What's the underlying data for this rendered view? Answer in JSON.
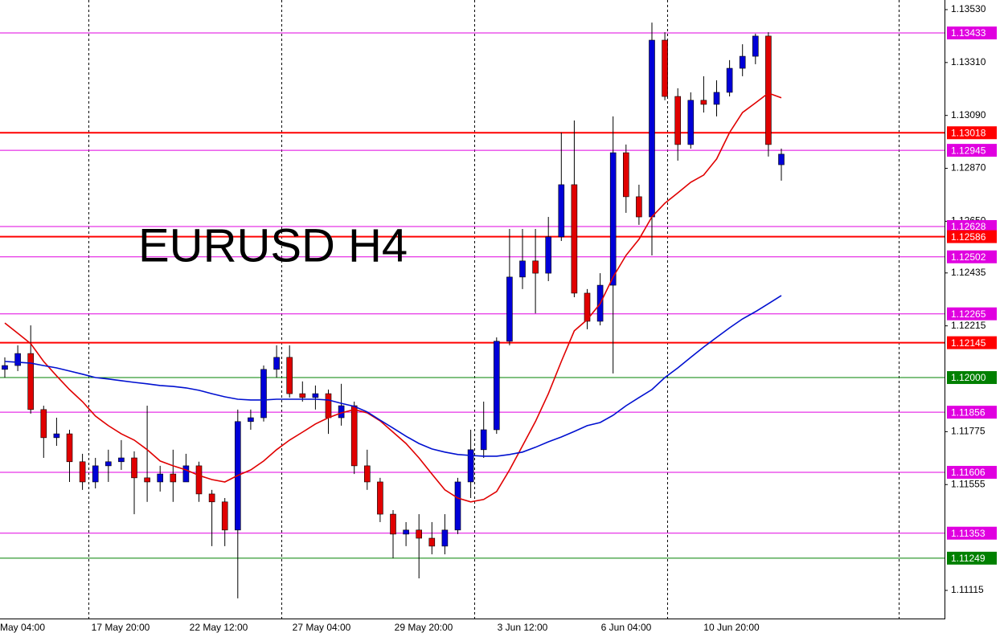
{
  "chart_data": {
    "type": "candlestick",
    "annotation": "EURUSD H4",
    "ylim": [
      1.10998,
      1.1357
    ],
    "yticks": [
      {
        "value": 1.1353,
        "label": "1.13530"
      },
      {
        "value": 1.1331,
        "label": "1.13310"
      },
      {
        "value": 1.1309,
        "label": "1.13090"
      },
      {
        "value": 1.1287,
        "label": "1.12870"
      },
      {
        "value": 1.1265,
        "label": "1.12650"
      },
      {
        "value": 1.12435,
        "label": "1.12435"
      },
      {
        "value": 1.12215,
        "label": "1.12215"
      },
      {
        "value": 1.11775,
        "label": "1.11775"
      },
      {
        "value": 1.11555,
        "label": "1.11555"
      },
      {
        "value": 1.11115,
        "label": "1.11115"
      }
    ],
    "x_labels": [
      "May 04:00",
      "17 May 20:00",
      "22 May 12:00",
      "27 May 04:00",
      "29 May 20:00",
      "3 Jun 12:00",
      "6 Jun 04:00",
      "10 Jun 20:00"
    ],
    "up_color": "#0000d8",
    "down_color": "#e00000",
    "candles": {
      "open": [
        1.12034,
        1.1205,
        1.121,
        1.11867,
        1.1175,
        1.11766,
        1.1165,
        1.11566,
        1.11633,
        1.1165,
        1.11666,
        1.11583,
        1.11566,
        1.11599,
        1.11566,
        1.11633,
        1.11516,
        1.11483,
        1.11366,
        1.11817,
        1.11833,
        1.12034,
        1.12084,
        1.11933,
        1.11917,
        1.11933,
        1.11833,
        1.11883,
        1.11633,
        1.11566,
        1.11432,
        1.11349,
        1.11366,
        1.11332,
        1.11299,
        1.11366,
        1.11566,
        1.117,
        1.11783,
        1.12151,
        1.12418,
        1.12485,
        1.12434,
        1.12585,
        1.12802,
        1.12351,
        1.12234,
        1.12384,
        1.12935,
        1.12752,
        1.12668,
        1.13403,
        1.13169,
        1.12969,
        1.13153,
        1.13136,
        1.13186,
        1.13286,
        1.13336,
        1.1342,
        1.12885
      ],
      "high": [
        1.12084,
        1.12134,
        1.12217,
        1.11883,
        1.11833,
        1.11783,
        1.11683,
        1.11666,
        1.117,
        1.1174,
        1.11693,
        1.11883,
        1.11633,
        1.117,
        1.11683,
        1.1165,
        1.11533,
        1.11499,
        1.11867,
        1.11867,
        1.1205,
        1.12134,
        1.12134,
        1.11984,
        1.11967,
        1.1195,
        1.11974,
        1.119,
        1.117,
        1.11583,
        1.11449,
        1.11399,
        1.11432,
        1.11399,
        1.11432,
        1.11583,
        1.11783,
        1.119,
        1.12167,
        1.12618,
        1.12618,
        1.12618,
        1.12668,
        1.13019,
        1.13069,
        1.12368,
        1.12434,
        1.13086,
        1.12969,
        1.12802,
        1.13476,
        1.13436,
        1.13203,
        1.13186,
        1.13253,
        1.13236,
        1.1332,
        1.13386,
        1.1343,
        1.13436,
        1.12952
      ],
      "low": [
        1.12,
        1.12027,
        1.1185,
        1.11666,
        1.11716,
        1.11566,
        1.11533,
        1.11539,
        1.11566,
        1.11616,
        1.11432,
        1.11483,
        1.11526,
        1.11483,
        1.11566,
        1.11483,
        1.11299,
        1.11299,
        1.11082,
        1.11783,
        1.11817,
        1.12,
        1.11917,
        1.119,
        1.11867,
        1.11766,
        1.118,
        1.11599,
        1.11533,
        1.11399,
        1.11249,
        1.11299,
        1.11165,
        1.11265,
        1.11265,
        1.11349,
        1.11499,
        1.11666,
        1.11766,
        1.12134,
        1.12368,
        1.12267,
        1.12401,
        1.12568,
        1.12334,
        1.12201,
        1.12217,
        1.12017,
        1.12685,
        1.12635,
        1.12508,
        1.13153,
        1.12902,
        1.12952,
        1.13102,
        1.13086,
        1.13169,
        1.13253,
        1.13303,
        1.12919,
        1.12819
      ],
      "close": [
        1.1205,
        1.121,
        1.11867,
        1.1175,
        1.11766,
        1.1165,
        1.11566,
        1.11633,
        1.1165,
        1.11666,
        1.11583,
        1.11566,
        1.11599,
        1.11566,
        1.11633,
        1.11516,
        1.11483,
        1.11366,
        1.11817,
        1.11833,
        1.12034,
        1.12084,
        1.11933,
        1.11917,
        1.11933,
        1.11833,
        1.11883,
        1.11633,
        1.11566,
        1.11432,
        1.11349,
        1.11366,
        1.11332,
        1.11299,
        1.11366,
        1.11566,
        1.117,
        1.11783,
        1.12151,
        1.12418,
        1.12485,
        1.12434,
        1.12585,
        1.12802,
        1.12351,
        1.12234,
        1.12384,
        1.12935,
        1.12752,
        1.12668,
        1.13403,
        1.13169,
        1.12969,
        1.13153,
        1.13136,
        1.13186,
        1.13286,
        1.13336,
        1.1342,
        1.12969,
        1.12929
      ]
    },
    "ma_lines": [
      {
        "color": "#e00000",
        "values": [
          1.12227,
          1.12184,
          1.12141,
          1.12067,
          1.12007,
          1.1195,
          1.119,
          1.1184,
          1.118,
          1.11766,
          1.1174,
          1.117,
          1.11653,
          1.11633,
          1.11616,
          1.11593,
          1.11576,
          1.11566,
          1.11593,
          1.11616,
          1.11653,
          1.117,
          1.1174,
          1.11773,
          1.11807,
          1.11833,
          1.11853,
          1.11867,
          1.11853,
          1.1182,
          1.11773,
          1.11726,
          1.11666,
          1.11599,
          1.11533,
          1.11499,
          1.11483,
          1.11493,
          1.11526,
          1.11616,
          1.11716,
          1.11817,
          1.11933,
          1.12067,
          1.12194,
          1.12241,
          1.12307,
          1.12418,
          1.12508,
          1.12575,
          1.12668,
          1.12725,
          1.12768,
          1.12812,
          1.12842,
          1.12909,
          1.13019,
          1.13102,
          1.13142,
          1.13183,
          1.13163
        ]
      },
      {
        "color": "#0010d0",
        "values": [
          1.12067,
          1.12064,
          1.1206,
          1.1205,
          1.1204,
          1.12027,
          1.12014,
          1.12,
          1.11994,
          1.11987,
          1.1198,
          1.11974,
          1.11967,
          1.11963,
          1.11957,
          1.11947,
          1.11933,
          1.1192,
          1.1191,
          1.11907,
          1.11907,
          1.1191,
          1.1191,
          1.1191,
          1.1191,
          1.11907,
          1.11893,
          1.1188,
          1.11857,
          1.11823,
          1.1179,
          1.11756,
          1.11726,
          1.11703,
          1.1169,
          1.1168,
          1.11676,
          1.11673,
          1.11673,
          1.1168,
          1.1169,
          1.1171,
          1.11733,
          1.11753,
          1.11776,
          1.118,
          1.11813,
          1.11843,
          1.11883,
          1.11917,
          1.1195,
          1.12,
          1.1204,
          1.12084,
          1.12127,
          1.12167,
          1.12207,
          1.12244,
          1.12274,
          1.12307,
          1.12341
        ]
      }
    ],
    "levels": [
      {
        "value": 1.13433,
        "color": "#e000e0"
      },
      {
        "value": 1.13018,
        "color": "#ff0000"
      },
      {
        "value": 1.12945,
        "color": "#e000e0"
      },
      {
        "value": 1.12628,
        "color": "#e000e0"
      },
      {
        "value": 1.12586,
        "color": "#ff0000"
      },
      {
        "value": 1.12502,
        "color": "#e000e0"
      },
      {
        "value": 1.12265,
        "color": "#e000e0"
      },
      {
        "value": 1.12145,
        "color": "#ff0000"
      },
      {
        "value": 1.12,
        "label": "1.12000",
        "color": "#008000"
      },
      {
        "value": 1.11856,
        "color": "#e000e0"
      },
      {
        "value": 1.11606,
        "color": "#e000e0"
      },
      {
        "value": 1.11353,
        "color": "#e000e0"
      },
      {
        "value": 1.11249,
        "color": "#008000"
      }
    ]
  }
}
